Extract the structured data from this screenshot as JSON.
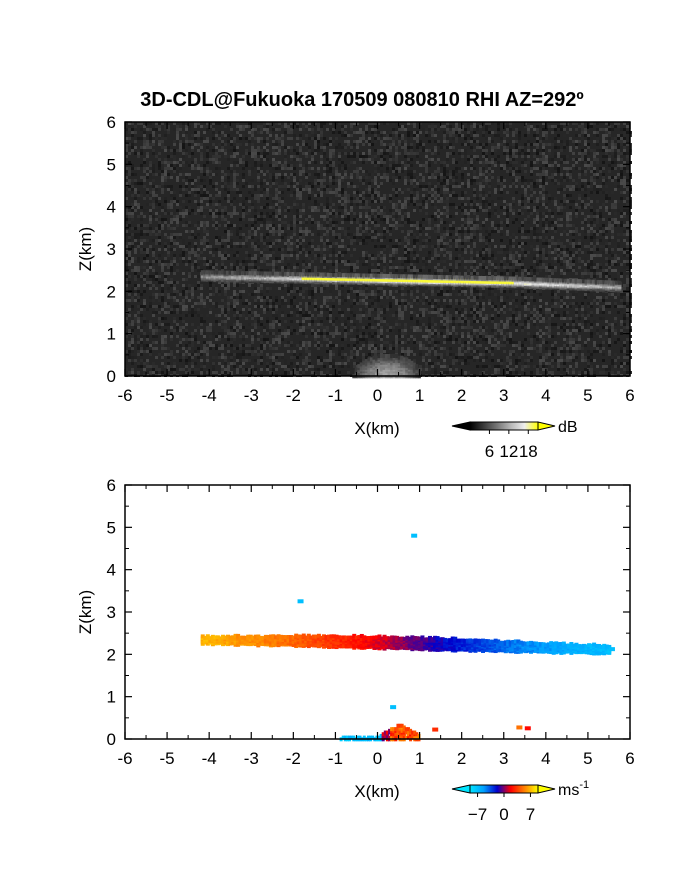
{
  "title": "3D-CDL@Fukuoka 170509 080810 RHI AZ=292º",
  "chart_data": [
    {
      "type": "heatmap",
      "panel": "top",
      "xlabel": "X(km)",
      "ylabel": "Z(km)",
      "xlim": [
        -6,
        6
      ],
      "ylim": [
        0,
        6
      ],
      "x_ticks": [
        "-6",
        "-5",
        "-4",
        "-3",
        "-2",
        "-1",
        "0",
        "1",
        "2",
        "3",
        "4",
        "5",
        "6"
      ],
      "y_ticks": [
        "0",
        "1",
        "2",
        "3",
        "4",
        "5",
        "6"
      ],
      "colorbar": {
        "unit": "dB",
        "ticks": [
          "6",
          "12",
          "18"
        ],
        "range": [
          0,
          21
        ],
        "colors": [
          "#000000",
          "#3a3a3a",
          "#777777",
          "#b8b8b8",
          "#eeeeee",
          "#ffff00"
        ]
      },
      "background_db": 4,
      "features": [
        {
          "name": "layer",
          "x_range": [
            -4.2,
            5.7
          ],
          "z_center": [
            2.4,
            2.35,
            2.3,
            2.25,
            2.15
          ],
          "thickness_km": 0.12,
          "db": [
            10,
            15,
            20,
            17,
            12
          ]
        },
        {
          "name": "core",
          "x_range": [
            -1.8,
            3.2
          ],
          "z": 2.3,
          "db": 20
        },
        {
          "name": "near-ground",
          "x_range": [
            -0.6,
            1.0
          ],
          "z_max": 0.5,
          "db": 11
        }
      ]
    },
    {
      "type": "heatmap",
      "panel": "bottom",
      "xlabel": "X(km)",
      "ylabel": "Z(km)",
      "xlim": [
        -6,
        6
      ],
      "ylim": [
        0,
        6
      ],
      "x_ticks": [
        "-6",
        "-5",
        "-4",
        "-3",
        "-2",
        "-1",
        "0",
        "1",
        "2",
        "3",
        "4",
        "5",
        "6"
      ],
      "y_ticks": [
        "0",
        "1",
        "2",
        "3",
        "4",
        "5",
        "6"
      ],
      "colorbar": {
        "unit": "ms",
        "unit_exp": "-1",
        "ticks": [
          "−7",
          "0",
          "7"
        ],
        "range": [
          -9,
          9
        ],
        "colors": [
          "#00e5ff",
          "#00a0ff",
          "#0000cc",
          "#ff0000",
          "#ff8000",
          "#ffff00"
        ]
      },
      "layer": {
        "x_range": [
          -4.2,
          5.5
        ],
        "z_center": [
          2.37,
          2.35,
          2.3,
          2.22,
          2.14
        ],
        "velocity_ms": [
          7,
          5,
          2,
          -2,
          -5,
          -7
        ]
      },
      "isolated_points": [
        {
          "x": 0.8,
          "z": 4.85,
          "v": -7
        },
        {
          "x": -1.9,
          "z": 3.3,
          "v": -7
        },
        {
          "x": 5.5,
          "z": 2.17,
          "v": -7
        },
        {
          "x": 0.3,
          "z": 0.8,
          "v": -7
        },
        {
          "x": 1.3,
          "z": 0.27,
          "v": 3
        },
        {
          "x": 3.3,
          "z": 0.32,
          "v": 5
        },
        {
          "x": 3.5,
          "z": 0.3,
          "v": 2
        }
      ],
      "ground_clutter": {
        "x_range": [
          -0.9,
          1.0
        ],
        "z_max": 0.35
      }
    }
  ]
}
